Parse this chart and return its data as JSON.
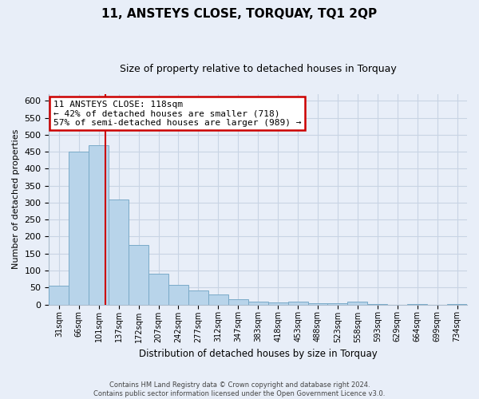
{
  "title": "11, ANSTEYS CLOSE, TORQUAY, TQ1 2QP",
  "subtitle": "Size of property relative to detached houses in Torquay",
  "xlabel": "Distribution of detached houses by size in Torquay",
  "ylabel": "Number of detached properties",
  "footer_line1": "Contains HM Land Registry data © Crown copyright and database right 2024.",
  "footer_line2": "Contains public sector information licensed under the Open Government Licence v3.0.",
  "categories": [
    "31sqm",
    "66sqm",
    "101sqm",
    "137sqm",
    "172sqm",
    "207sqm",
    "242sqm",
    "277sqm",
    "312sqm",
    "347sqm",
    "383sqm",
    "418sqm",
    "453sqm",
    "488sqm",
    "523sqm",
    "558sqm",
    "593sqm",
    "629sqm",
    "664sqm",
    "699sqm",
    "734sqm"
  ],
  "values": [
    55,
    450,
    470,
    310,
    175,
    90,
    58,
    42,
    30,
    15,
    8,
    5,
    8,
    3,
    3,
    8,
    2,
    0,
    1,
    0,
    2
  ],
  "bar_color": "#b8d4ea",
  "bar_edge_color": "#7aaac8",
  "property_line_index": 2,
  "property_label": "11 ANSTEYS CLOSE: 118sqm",
  "annotation_left": "← 42% of detached houses are smaller (718)",
  "annotation_right": "57% of semi-detached houses are larger (989) →",
  "annotation_box_color": "#ffffff",
  "annotation_box_edge_color": "#cc0000",
  "vline_color": "#cc0000",
  "ylim": [
    0,
    620
  ],
  "yticks": [
    0,
    50,
    100,
    150,
    200,
    250,
    300,
    350,
    400,
    450,
    500,
    550,
    600
  ],
  "grid_color": "#c8d4e4",
  "background_color": "#e8eef8",
  "title_fontsize": 11,
  "subtitle_fontsize": 9
}
